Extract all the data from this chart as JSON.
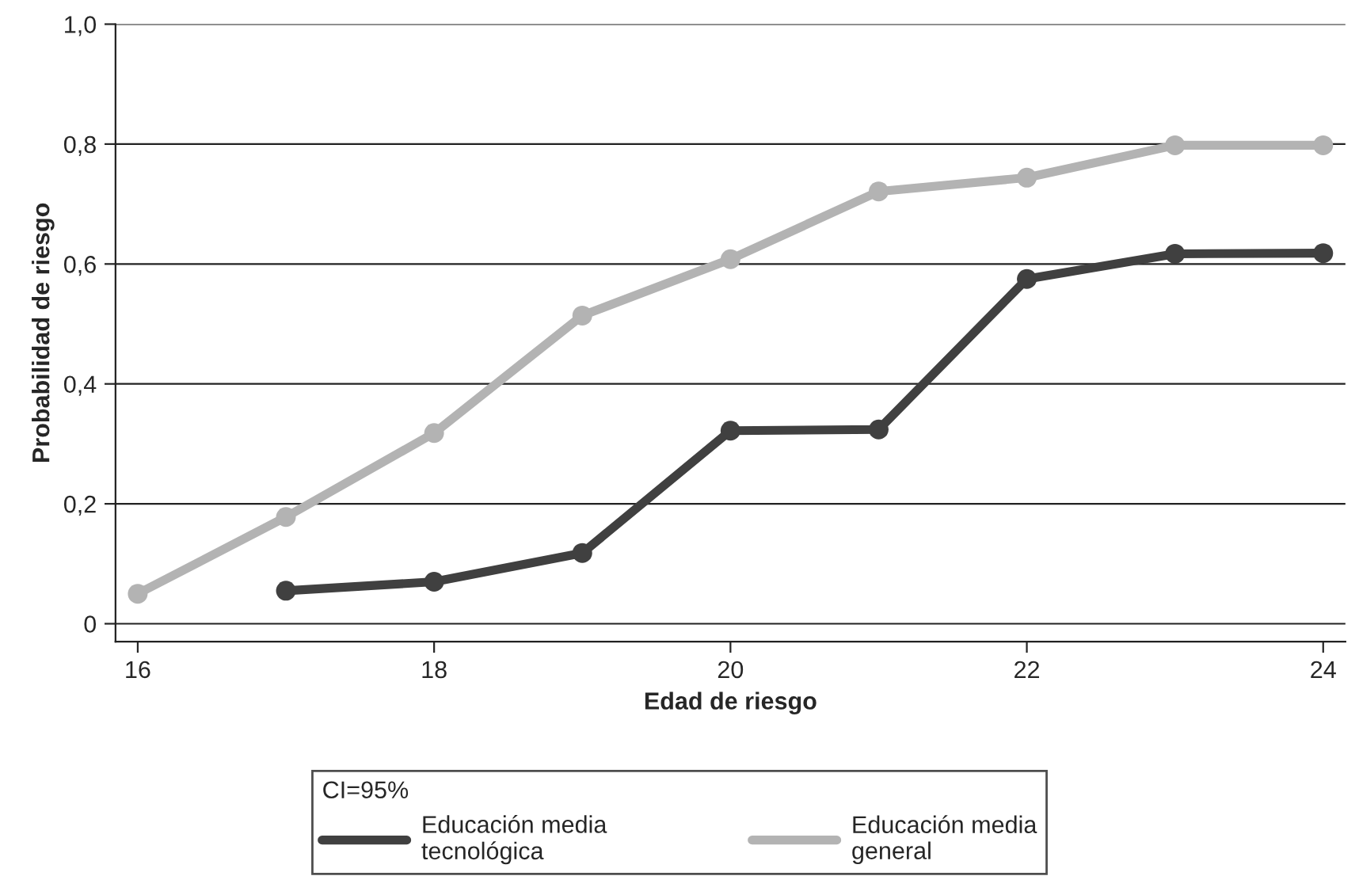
{
  "chart_data": {
    "type": "line",
    "xlabel": "Edad de riesgo",
    "ylabel": "Probabilidad de riesgo",
    "legend_title": "CI=95%",
    "xlim": [
      15.85,
      24.15
    ],
    "xticks": [
      16,
      18,
      20,
      22,
      24
    ],
    "ylim": [
      -0.03,
      1.0
    ],
    "yticks": [
      {
        "value": 0,
        "label": "0"
      },
      {
        "value": 0.2,
        "label": "0,2"
      },
      {
        "value": 0.4,
        "label": "0,4"
      },
      {
        "value": 0.6,
        "label": "0,6"
      },
      {
        "value": 0.8,
        "label": "0,8"
      },
      {
        "value": 1.0,
        "label": "1,0"
      }
    ],
    "grid": "y",
    "legend": "bottom",
    "marker": "circle",
    "line_style": "solid",
    "series": [
      {
        "name": "Educación media\ntecnológica",
        "color": "#404040",
        "x": [
          17,
          18,
          19,
          20,
          21,
          22,
          23,
          24
        ],
        "values": [
          0.055,
          0.07,
          0.118,
          0.322,
          0.324,
          0.575,
          0.617,
          0.618
        ]
      },
      {
        "name": "Educación media\ngeneral",
        "color": "#b3b3b3",
        "x": [
          16,
          17,
          18,
          19,
          20,
          21,
          22,
          23,
          24
        ],
        "values": [
          0.05,
          0.178,
          0.318,
          0.514,
          0.608,
          0.721,
          0.744,
          0.798,
          0.798
        ]
      }
    ]
  }
}
